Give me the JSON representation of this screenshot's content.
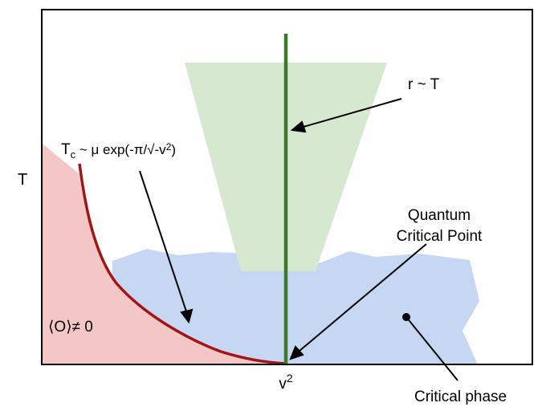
{
  "axes": {
    "y_label": "T",
    "x_label_base": "v",
    "x_label_sup": "2"
  },
  "labels": {
    "tc_prefix": "T",
    "tc_sub": "c",
    "tc_formula": " ~ μ exp(-π/√-v",
    "tc_sup": "2",
    "tc_close": ")",
    "r_scaling": "r ~ T",
    "qcp_line1": "Quantum",
    "qcp_line2": "Critical Point",
    "order_parameter": "⟨O⟩≠ 0",
    "critical_phase": "Critical phase"
  },
  "colors": {
    "ordered_region": "#f4c7c7",
    "critical_region": "#c6d7f4",
    "quantum_critical_cone": "#d6e8d0",
    "green_line": "#3a7a2a",
    "tc_curve": "#a31515",
    "frame": "#000000"
  }
}
